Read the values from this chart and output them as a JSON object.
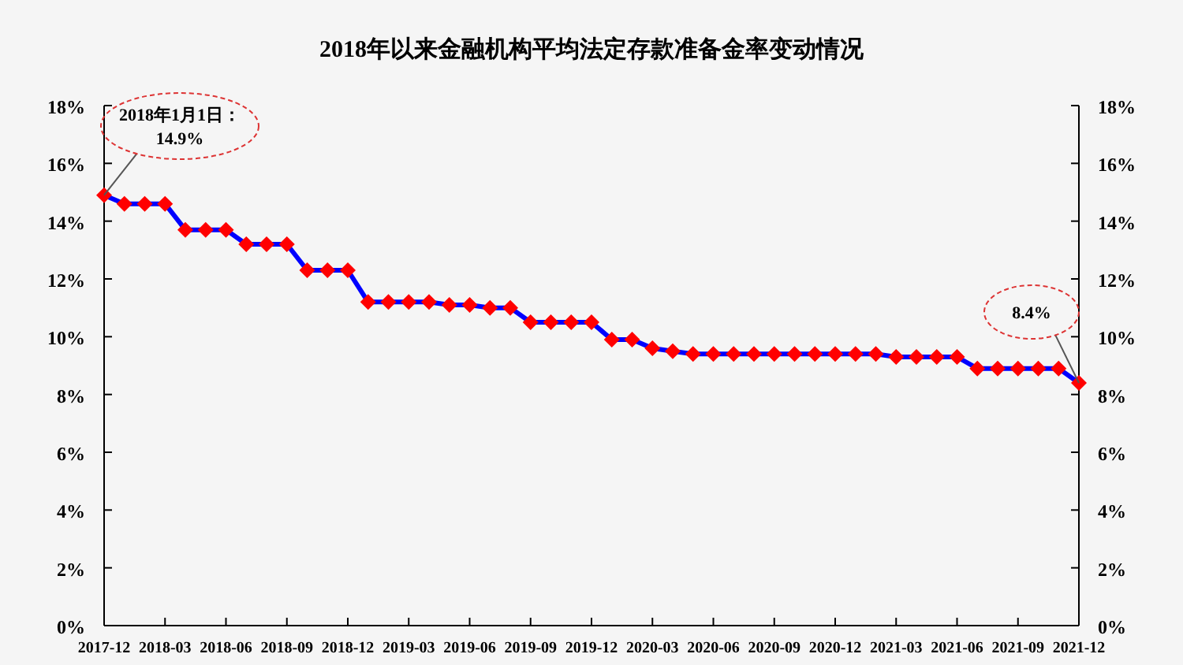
{
  "chart_data": {
    "type": "line",
    "title": "2018年以来金融机构平均法定存款准备金率变动情况",
    "x": [
      "2017-12",
      "2018-01",
      "2018-02",
      "2018-03",
      "2018-04",
      "2018-05",
      "2018-06",
      "2018-07",
      "2018-08",
      "2018-09",
      "2018-10",
      "2018-11",
      "2018-12",
      "2019-01",
      "2019-02",
      "2019-03",
      "2019-04",
      "2019-05",
      "2019-06",
      "2019-07",
      "2019-08",
      "2019-09",
      "2019-10",
      "2019-11",
      "2019-12",
      "2020-01",
      "2020-02",
      "2020-03",
      "2020-04",
      "2020-05",
      "2020-06",
      "2020-07",
      "2020-08",
      "2020-09",
      "2020-10",
      "2020-11",
      "2020-12",
      "2021-01",
      "2021-02",
      "2021-03",
      "2021-04",
      "2021-05",
      "2021-06",
      "2021-07",
      "2021-08",
      "2021-09",
      "2021-10",
      "2021-11",
      "2021-12"
    ],
    "series": [
      {
        "color": "#0000ff",
        "colors": [
          "#ff0000",
          "#ff0000",
          "#ff0000",
          "#ff0000",
          "#ff0000",
          "#ff0000",
          "#ff0000",
          "#ff0000",
          "#ff0000",
          "#ff0000",
          "#ff0000",
          "#ff0000",
          "#ff0000",
          "#ff0000",
          "#ff0000",
          "#ff0000",
          "#ff0000",
          "#ff0000",
          "#ff0000",
          "#ff0000",
          "#ff0000",
          "#ff0000",
          "#ff0000",
          "#ff0000",
          "#ff0000",
          "#ff0000",
          "#ff0000",
          "#ff0000",
          "#ff0000",
          "#ff0000",
          "#ff0000",
          "#ff0000",
          "#ff0000",
          "#ff0000",
          "#ff0000",
          "#ff0000",
          "#ff0000",
          "#ff0000",
          "#ff0000",
          "#ff0000",
          "#ff0000",
          "#ff0000",
          "#ff0000",
          "#ff0000",
          "#ff0000",
          "#ff0000",
          "#ff0000",
          "#ff0000",
          "#ff0000"
        ],
        "values": [
          14.9,
          14.6,
          14.6,
          14.6,
          13.7,
          13.7,
          13.7,
          13.2,
          13.2,
          13.2,
          12.3,
          12.3,
          12.3,
          11.2,
          11.2,
          11.2,
          11.2,
          11.1,
          11.1,
          11.0,
          11.0,
          10.5,
          10.5,
          10.5,
          10.5,
          9.9,
          9.9,
          9.6,
          9.5,
          9.4,
          9.4,
          9.4,
          9.4,
          9.4,
          9.4,
          9.4,
          9.4,
          9.4,
          9.4,
          9.3,
          9.3,
          9.3,
          9.3,
          8.9,
          8.9,
          8.9,
          8.9,
          8.9,
          8.4
        ]
      }
    ],
    "marker": "diamond",
    "line_style": "solid",
    "grid": false,
    "xlim": [
      "2017-12",
      "2021-12"
    ],
    "xticks": [
      "2017-12",
      "2018-03",
      "2018-06",
      "2018-09",
      "2018-12",
      "2019-03",
      "2019-06",
      "2019-09",
      "2019-12",
      "2020-03",
      "2020-06",
      "2020-09",
      "2020-12",
      "2021-03",
      "2021-06",
      "2021-09",
      "2021-12"
    ],
    "ylim": [
      0,
      18
    ],
    "yticks": [
      {
        "value": 0,
        "label": "0%"
      },
      {
        "value": 2,
        "label": "2%"
      },
      {
        "value": 4,
        "label": "4%"
      },
      {
        "value": 6,
        "label": "6%"
      },
      {
        "value": 8,
        "label": "8%"
      },
      {
        "value": 10,
        "label": "10%"
      },
      {
        "value": 12,
        "label": "12%"
      },
      {
        "value": 14,
        "label": "14%"
      },
      {
        "value": 16,
        "label": "16%"
      },
      {
        "value": 18,
        "label": "18%"
      }
    ],
    "y2lim": [
      0,
      18
    ],
    "y2ticks": [
      {
        "value": 0,
        "label": "0%"
      },
      {
        "value": 2,
        "label": "2%"
      },
      {
        "value": 4,
        "label": "4%"
      },
      {
        "value": 6,
        "label": "6%"
      },
      {
        "value": 8,
        "label": "8%"
      },
      {
        "value": 10,
        "label": "10%"
      },
      {
        "value": 12,
        "label": "12%"
      },
      {
        "value": 14,
        "label": "14%"
      },
      {
        "value": 16,
        "label": "16%"
      },
      {
        "value": 18,
        "label": "18%"
      }
    ],
    "annotations": [
      {
        "text": "2018年1月1日：\n14.9%",
        "x": "2017-12",
        "y": 14.9
      },
      {
        "text": "8.4%",
        "x": "2021-12",
        "y": 8.4
      }
    ]
  }
}
